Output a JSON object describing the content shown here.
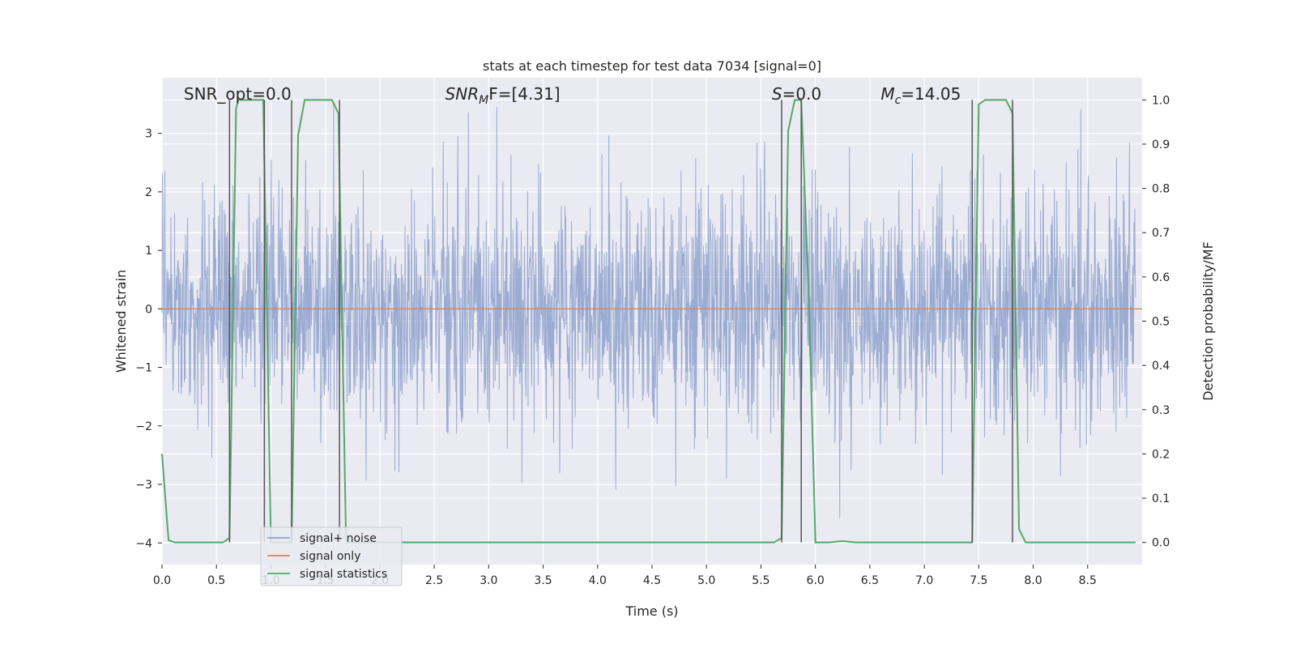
{
  "chart_data": {
    "type": "line",
    "title": "stats at each timestep for test data 7034 [signal=0]",
    "xlabel": "Time (s)",
    "ylabel": "Whitened strain",
    "y2label": "Detection probability/MF",
    "xlim": [
      0.0,
      9.0
    ],
    "ylim": [
      -4.37,
      3.95
    ],
    "y2lim": [
      -0.05,
      1.05
    ],
    "xticks": [
      "0.0",
      "0.5",
      "1.0",
      "1.5",
      "2.0",
      "2.5",
      "3.0",
      "3.5",
      "4.0",
      "4.5",
      "5.0",
      "5.5",
      "6.0",
      "6.5",
      "7.0",
      "7.5",
      "8.0",
      "8.5"
    ],
    "yticks": [
      "3",
      "2",
      "1",
      "0",
      "−1",
      "−2",
      "−3",
      "−4"
    ],
    "y2ticks": [
      "1.0",
      "0.9",
      "0.8",
      "0.7",
      "0.6",
      "0.5",
      "0.4",
      "0.3",
      "0.2",
      "0.1",
      "0.0"
    ],
    "annotations": [
      {
        "text": "SNR_opt=0.0",
        "x": 0.2
      },
      {
        "text": "SNR",
        "sub": "M",
        "rest": "F=[4.31]",
        "x": 2.6
      },
      {
        "text": "S",
        "rest": "=0.0",
        "x": 5.6
      },
      {
        "text": "M",
        "sub": "c",
        "rest": "=14.05",
        "x": 6.6
      }
    ],
    "legend": {
      "position": "lower-left",
      "entries": [
        "signal+ noise",
        "signal only",
        "signal statistics"
      ]
    },
    "colors": {
      "noise": "#8da0cb",
      "signal": "#dd8452",
      "stats": "#55a868",
      "vline": "#555555",
      "plot_bg": "#eaeaf2",
      "grid": "#ffffff"
    },
    "series": [
      {
        "name": "signal+ noise",
        "stats": {
          "mean": 0.0,
          "std": 1.0,
          "min": -3.6,
          "max": 3.55
        }
      },
      {
        "name": "signal only",
        "values": [
          [
            0.0,
            0.0
          ],
          [
            9.0,
            0.0
          ]
        ]
      },
      {
        "name": "signal statistics",
        "points": [
          [
            0.0,
            0.2
          ],
          [
            0.06,
            0.005
          ],
          [
            0.12,
            0.0
          ],
          [
            0.56,
            0.0
          ],
          [
            0.62,
            0.01
          ],
          [
            0.68,
            0.98
          ],
          [
            0.7,
            1.0
          ],
          [
            0.93,
            1.0
          ],
          [
            1.0,
            0.0
          ],
          [
            1.19,
            0.0
          ],
          [
            1.25,
            0.92
          ],
          [
            1.31,
            1.0
          ],
          [
            1.56,
            1.0
          ],
          [
            1.62,
            0.97
          ],
          [
            1.69,
            0.0
          ],
          [
            5.62,
            0.0
          ],
          [
            5.69,
            0.01
          ],
          [
            5.75,
            0.93
          ],
          [
            5.81,
            1.0
          ],
          [
            5.87,
            1.0
          ],
          [
            5.94,
            0.55
          ],
          [
            6.0,
            0.0
          ],
          [
            6.12,
            0.0
          ],
          [
            6.25,
            0.003
          ],
          [
            6.37,
            0.0
          ],
          [
            7.44,
            0.0
          ],
          [
            7.5,
            0.99
          ],
          [
            7.56,
            1.0
          ],
          [
            7.75,
            1.0
          ],
          [
            7.81,
            0.97
          ],
          [
            7.87,
            0.03
          ],
          [
            7.93,
            0.0
          ],
          [
            8.94,
            0.0
          ]
        ]
      }
    ],
    "vlines": [
      {
        "x": 0.62,
        "y2": [
          0.0,
          1.0
        ]
      },
      {
        "x": 0.94,
        "y2": [
          0.0,
          1.0
        ]
      },
      {
        "x": 1.19,
        "y2": [
          0.0,
          1.0
        ]
      },
      {
        "x": 1.63,
        "y2": [
          0.0,
          1.0
        ]
      },
      {
        "x": 5.69,
        "y2": [
          0.0,
          1.0
        ]
      },
      {
        "x": 5.87,
        "y2": [
          0.0,
          1.0
        ]
      },
      {
        "x": 7.44,
        "y2": [
          0.0,
          1.0
        ]
      },
      {
        "x": 7.81,
        "y2": [
          0.0,
          1.0
        ]
      }
    ]
  }
}
